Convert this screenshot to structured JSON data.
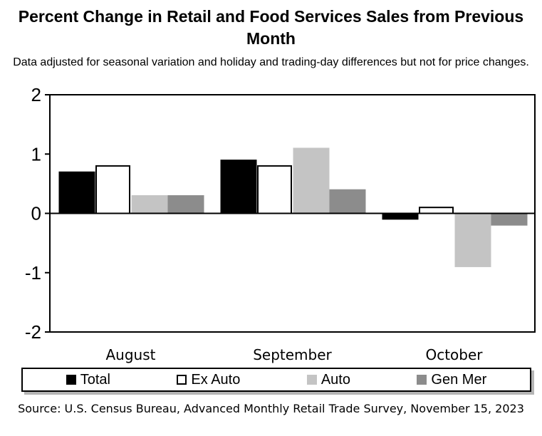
{
  "chart_data": {
    "type": "bar",
    "title": "Percent Change in Retail and Food Services Sales from Previous Month",
    "subtitle": "Data adjusted for seasonal variation and holiday and trading-day differences but not for price changes.",
    "categories": [
      "August",
      "September",
      "October"
    ],
    "series": [
      {
        "name": "Total",
        "values": [
          0.7,
          0.9,
          -0.1
        ]
      },
      {
        "name": "Ex Auto",
        "values": [
          0.8,
          0.8,
          0.1
        ]
      },
      {
        "name": "Auto",
        "values": [
          0.3,
          1.1,
          -0.9
        ]
      },
      {
        "name": "Gen Mer",
        "values": [
          0.3,
          0.4,
          -0.2
        ]
      }
    ],
    "ylim": [
      -2,
      2
    ],
    "yticks": [
      -2,
      -1,
      0,
      1,
      2
    ],
    "xlabel": "",
    "ylabel": "",
    "grid": false,
    "legend_position": "bottom",
    "colors": {
      "Total": {
        "fill": "#000000",
        "stroke": "#000000"
      },
      "Ex Auto": {
        "fill": "#ffffff",
        "stroke": "#000000"
      },
      "Auto": {
        "fill": "#c4c4c4",
        "stroke": "#c4c4c4"
      },
      "Gen Mer": {
        "fill": "#8c8c8c",
        "stroke": "#8c8c8c"
      }
    },
    "source": "Source: U.S. Census Bureau, Advanced Monthly Retail Trade Survey, November 15, 2023"
  }
}
